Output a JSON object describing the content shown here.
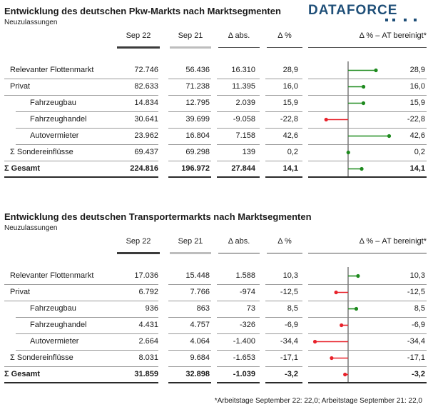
{
  "logo": {
    "text": "DATAFORCE"
  },
  "headers": {
    "current": "Sep 22",
    "previous": "Sep 21",
    "abs": "Δ abs.",
    "pct": "Δ %",
    "adj": "Δ % – AT bereinigt*"
  },
  "footnote": "*Arbeitstage September 22: 22,0; Arbeitstage September 21: 22,0",
  "colors": {
    "positive": "#1e8a1e",
    "negative": "#e8222b",
    "logo": "#1f4f78"
  },
  "sections": [
    {
      "title": "Entwicklung des deutschen Pkw-Markts nach Marktsegmenten",
      "subtitle": "Neuzulassungen",
      "rows": [
        {
          "label": "Relevanter Flottenmarkt",
          "cur": "72.746",
          "prev": "56.436",
          "abs": "16.310",
          "pct": "28,9",
          "adj": "28,9"
        },
        {
          "label": "Privat",
          "cur": "82.633",
          "prev": "71.238",
          "abs": "11.395",
          "pct": "16,0",
          "adj": "16,0"
        },
        {
          "label": "Fahrzeugbau",
          "cur": "14.834",
          "prev": "12.795",
          "abs": "2.039",
          "pct": "15,9",
          "adj": "15,9"
        },
        {
          "label": "Fahrzeughandel",
          "cur": "30.641",
          "prev": "39.699",
          "abs": "-9.058",
          "pct": "-22,8",
          "adj": "-22,8"
        },
        {
          "label": "Autovermieter",
          "cur": "23.962",
          "prev": "16.804",
          "abs": "7.158",
          "pct": "42,6",
          "adj": "42,6"
        },
        {
          "label": "Σ Sondereinflüsse",
          "cur": "69.437",
          "prev": "69.298",
          "abs": "139",
          "pct": "0,2",
          "adj": "0,2"
        },
        {
          "label": "Σ Gesamt",
          "cur": "224.816",
          "prev": "196.972",
          "abs": "27.844",
          "pct": "14,1",
          "adj": "14,1"
        }
      ]
    },
    {
      "title": "Entwicklung des deutschen Transportermarkts nach Marktsegmenten",
      "subtitle": "Neuzulassungen",
      "rows": [
        {
          "label": "Relevanter Flottenmarkt",
          "cur": "17.036",
          "prev": "15.448",
          "abs": "1.588",
          "pct": "10,3",
          "adj": "10,3"
        },
        {
          "label": "Privat",
          "cur": "6.792",
          "prev": "7.766",
          "abs": "-974",
          "pct": "-12,5",
          "adj": "-12,5"
        },
        {
          "label": "Fahrzeugbau",
          "cur": "936",
          "prev": "863",
          "abs": "73",
          "pct": "8,5",
          "adj": "8,5"
        },
        {
          "label": "Fahrzeughandel",
          "cur": "4.431",
          "prev": "4.757",
          "abs": "-326",
          "pct": "-6,9",
          "adj": "-6,9"
        },
        {
          "label": "Autovermieter",
          "cur": "2.664",
          "prev": "4.064",
          "abs": "-1.400",
          "pct": "-34,4",
          "adj": "-34,4"
        },
        {
          "label": "Σ Sondereinflüsse",
          "cur": "8.031",
          "prev": "9.684",
          "abs": "-1.653",
          "pct": "-17,1",
          "adj": "-17,1"
        },
        {
          "label": "Σ Gesamt",
          "cur": "31.859",
          "prev": "32.898",
          "abs": "-1.039",
          "pct": "-3,2",
          "adj": "-3,2"
        }
      ]
    }
  ],
  "chart_data": [
    {
      "type": "bar",
      "title": "Entwicklung des deutschen Pkw-Markts nach Marktsegmenten",
      "subtitle": "Neuzulassungen",
      "categories": [
        "Relevanter Flottenmarkt",
        "Privat",
        "Fahrzeugbau",
        "Fahrzeughandel",
        "Autovermieter",
        "Σ Sondereinflüsse",
        "Σ Gesamt"
      ],
      "values": [
        28.9,
        16.0,
        15.9,
        -22.8,
        42.6,
        0.2,
        14.1
      ],
      "xlabel": "Δ % – AT bereinigt*",
      "xlim": [
        -40,
        45
      ],
      "orientation": "horizontal"
    },
    {
      "type": "bar",
      "title": "Entwicklung des deutschen Transportermarkts nach Marktsegmenten",
      "subtitle": "Neuzulassungen",
      "categories": [
        "Relevanter Flottenmarkt",
        "Privat",
        "Fahrzeugbau",
        "Fahrzeughandel",
        "Autovermieter",
        "Σ Sondereinflüsse",
        "Σ Gesamt"
      ],
      "values": [
        10.3,
        -12.5,
        8.5,
        -6.9,
        -34.4,
        -17.1,
        -3.2
      ],
      "xlabel": "Δ % – AT bereinigt*",
      "xlim": [
        -40,
        45
      ],
      "orientation": "horizontal"
    }
  ]
}
